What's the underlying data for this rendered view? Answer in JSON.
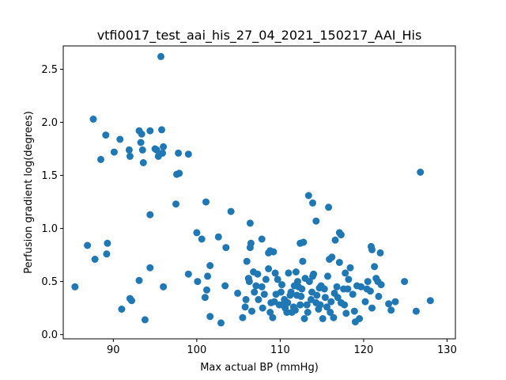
{
  "chart_data": {
    "type": "scatter",
    "title": "vtfi0017_test_aai_his_27_04_2021_150217_AAI_His",
    "xlabel": "Max actual BP (mmHg)",
    "ylabel": "Perfusion gradient log(degrees)",
    "xlim": [
      84,
      131
    ],
    "ylim": [
      -0.04,
      2.72
    ],
    "xticks": [
      90,
      100,
      110,
      120,
      130
    ],
    "yticks": [
      0.0,
      0.5,
      1.0,
      1.5,
      2.0,
      2.5
    ],
    "xtick_labels": [
      "90",
      "100",
      "110",
      "120",
      "130"
    ],
    "ytick_labels": [
      "0.0",
      "0.5",
      "1.0",
      "1.5",
      "2.0",
      "2.5"
    ],
    "grid": false,
    "marker_color": "#1f77b4",
    "points": [
      [
        95.7,
        2.62
      ],
      [
        87.6,
        2.03
      ],
      [
        89.1,
        1.88
      ],
      [
        93.1,
        1.92
      ],
      [
        93.4,
        1.89
      ],
      [
        94.4,
        1.92
      ],
      [
        95.8,
        1.93
      ],
      [
        90.8,
        1.84
      ],
      [
        93.3,
        1.81
      ],
      [
        91.9,
        1.74
      ],
      [
        93.5,
        1.74
      ],
      [
        95.0,
        1.75
      ],
      [
        95.2,
        1.74
      ],
      [
        96.0,
        1.77
      ],
      [
        90.1,
        1.72
      ],
      [
        95.4,
        1.68
      ],
      [
        95.9,
        1.71
      ],
      [
        97.8,
        1.71
      ],
      [
        99.0,
        1.7
      ],
      [
        92.0,
        1.68
      ],
      [
        88.5,
        1.65
      ],
      [
        93.6,
        1.62
      ],
      [
        97.6,
        1.51
      ],
      [
        97.9,
        1.52
      ],
      [
        97.5,
        1.23
      ],
      [
        101.1,
        1.25
      ],
      [
        104.1,
        1.16
      ],
      [
        94.4,
        1.13
      ],
      [
        106.4,
        1.05
      ],
      [
        113.9,
        1.24
      ],
      [
        115.8,
        1.2
      ],
      [
        113.4,
        1.31
      ],
      [
        114.3,
        1.07
      ],
      [
        100.0,
        0.96
      ],
      [
        100.6,
        0.9
      ],
      [
        102.6,
        0.92
      ],
      [
        103.5,
        0.82
      ],
      [
        106.4,
        0.82
      ],
      [
        106.5,
        0.86
      ],
      [
        107.8,
        0.9
      ],
      [
        108.6,
        0.77
      ],
      [
        108.8,
        0.79
      ],
      [
        109.2,
        0.78
      ],
      [
        112.4,
        0.86
      ],
      [
        112.8,
        0.87
      ],
      [
        116.6,
        0.89
      ],
      [
        117.1,
        0.96
      ],
      [
        117.3,
        0.94
      ],
      [
        120.9,
        0.83
      ],
      [
        121.0,
        0.8
      ],
      [
        122.0,
        0.77
      ],
      [
        86.9,
        0.84
      ],
      [
        89.3,
        0.86
      ],
      [
        87.8,
        0.71
      ],
      [
        89.2,
        0.76
      ],
      [
        94.4,
        0.63
      ],
      [
        101.3,
        0.55
      ],
      [
        101.6,
        0.65
      ],
      [
        99.0,
        0.57
      ],
      [
        100.1,
        0.5
      ],
      [
        101.2,
        0.42
      ],
      [
        101.0,
        0.35
      ],
      [
        103.4,
        0.46
      ],
      [
        85.4,
        0.45
      ],
      [
        96.0,
        0.45
      ],
      [
        93.1,
        0.51
      ],
      [
        92.0,
        0.34
      ],
      [
        92.2,
        0.32
      ],
      [
        91.0,
        0.24
      ],
      [
        93.8,
        0.14
      ],
      [
        101.6,
        0.17
      ],
      [
        102.9,
        0.11
      ],
      [
        104.9,
        0.39
      ],
      [
        105.5,
        0.16
      ],
      [
        105.8,
        0.26
      ],
      [
        106.2,
        0.53
      ],
      [
        106.0,
        0.69
      ],
      [
        106.3,
        0.5
      ],
      [
        106.8,
        0.59
      ],
      [
        107.1,
        0.46
      ],
      [
        107.3,
        0.57
      ],
      [
        107.8,
        0.45
      ],
      [
        108.1,
        0.38
      ],
      [
        108.3,
        0.52
      ],
      [
        108.6,
        0.62
      ],
      [
        108.9,
        0.3
      ],
      [
        109.1,
        0.16
      ],
      [
        109.4,
        0.58
      ],
      [
        109.7,
        0.52
      ],
      [
        109.9,
        0.28
      ],
      [
        110.2,
        0.47
      ],
      [
        110.5,
        0.33
      ],
      [
        110.8,
        0.21
      ],
      [
        111.0,
        0.58
      ],
      [
        111.3,
        0.4
      ],
      [
        111.6,
        0.26
      ],
      [
        111.9,
        0.59
      ],
      [
        112.2,
        0.45
      ],
      [
        112.5,
        0.36
      ],
      [
        112.7,
        0.69
      ],
      [
        113.0,
        0.53
      ],
      [
        113.2,
        0.28
      ],
      [
        113.5,
        0.5
      ],
      [
        113.8,
        0.4
      ],
      [
        114.0,
        0.57
      ],
      [
        114.3,
        0.3
      ],
      [
        114.6,
        0.24
      ],
      [
        114.9,
        0.46
      ],
      [
        115.1,
        0.15
      ],
      [
        115.4,
        0.35
      ],
      [
        115.7,
        0.55
      ],
      [
        116.0,
        0.21
      ],
      [
        116.2,
        0.73
      ],
      [
        116.5,
        0.39
      ],
      [
        116.8,
        0.45
      ],
      [
        117.1,
        0.68
      ],
      [
        117.3,
        0.3
      ],
      [
        117.6,
        0.43
      ],
      [
        117.9,
        0.2
      ],
      [
        118.2,
        0.52
      ],
      [
        118.4,
        0.63
      ],
      [
        118.7,
        0.38
      ],
      [
        119.0,
        0.12
      ],
      [
        119.2,
        0.46
      ],
      [
        119.5,
        0.15
      ],
      [
        120.2,
        0.31
      ],
      [
        120.5,
        0.5
      ],
      [
        120.8,
        0.41
      ],
      [
        121.0,
        0.25
      ],
      [
        121.3,
        0.64
      ],
      [
        121.5,
        0.53
      ],
      [
        121.8,
        0.36
      ],
      [
        122.1,
        0.47
      ],
      [
        123.0,
        0.29
      ],
      [
        123.3,
        0.23
      ],
      [
        123.8,
        0.31
      ],
      [
        124.9,
        0.5
      ],
      [
        126.8,
        1.53
      ],
      [
        126.3,
        0.22
      ],
      [
        128.0,
        0.32
      ],
      [
        110.9,
        0.3
      ],
      [
        111.4,
        0.21
      ],
      [
        112.0,
        0.37
      ],
      [
        112.9,
        0.15
      ],
      [
        113.7,
        0.33
      ],
      [
        114.7,
        0.44
      ],
      [
        115.6,
        0.26
      ],
      [
        116.4,
        0.16
      ],
      [
        117.7,
        0.28
      ],
      [
        118.9,
        0.22
      ],
      [
        107.4,
        0.33
      ],
      [
        109.5,
        0.38
      ],
      [
        110.6,
        0.25
      ],
      [
        111.7,
        0.46
      ],
      [
        112.4,
        0.28
      ],
      [
        113.9,
        0.55
      ],
      [
        114.8,
        0.28
      ],
      [
        115.9,
        0.71
      ],
      [
        116.9,
        0.35
      ],
      [
        117.8,
        0.58
      ],
      [
        106.9,
        0.4
      ],
      [
        107.9,
        0.25
      ],
      [
        108.8,
        0.21
      ],
      [
        110.1,
        0.4
      ],
      [
        111.2,
        0.37
      ],
      [
        112.1,
        0.5
      ],
      [
        113.3,
        0.21
      ],
      [
        114.4,
        0.37
      ],
      [
        115.3,
        0.43
      ],
      [
        116.1,
        0.31
      ],
      [
        105.9,
        0.33
      ],
      [
        106.6,
        0.22
      ],
      [
        109.3,
        0.31
      ],
      [
        110.3,
        0.28
      ],
      [
        111.8,
        0.23
      ],
      [
        120.4,
        0.43
      ],
      [
        121.7,
        0.5
      ],
      [
        118.1,
        0.43
      ],
      [
        119.7,
        0.45
      ],
      [
        112.6,
        0.43
      ]
    ]
  }
}
